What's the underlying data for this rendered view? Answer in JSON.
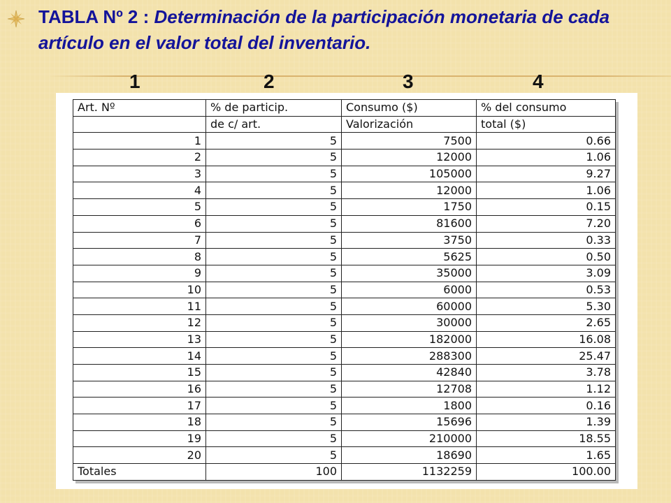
{
  "title": {
    "lead": "TABLA Nº 2 : ",
    "main": "Determinación de la participación monetaria de cada artículo en el valor total del inventario."
  },
  "column_numbers": [
    "1",
    "2",
    "3",
    "4"
  ],
  "table": {
    "header1": [
      "Art. Nº",
      "% de particip.",
      "Consumo ($)",
      "% del consumo"
    ],
    "header2": [
      "",
      "de c/ art.",
      "Valorización",
      "total ($)"
    ],
    "rows": [
      [
        "1",
        "5",
        "7500",
        "0.66"
      ],
      [
        "2",
        "5",
        "12000",
        "1.06"
      ],
      [
        "3",
        "5",
        "105000",
        "9.27"
      ],
      [
        "4",
        "5",
        "12000",
        "1.06"
      ],
      [
        "5",
        "5",
        "1750",
        "0.15"
      ],
      [
        "6",
        "5",
        "81600",
        "7.20"
      ],
      [
        "7",
        "5",
        "3750",
        "0.33"
      ],
      [
        "8",
        "5",
        "5625",
        "0.50"
      ],
      [
        "9",
        "5",
        "35000",
        "3.09"
      ],
      [
        "10",
        "5",
        "6000",
        "0.53"
      ],
      [
        "11",
        "5",
        "60000",
        "5.30"
      ],
      [
        "12",
        "5",
        "30000",
        "2.65"
      ],
      [
        "13",
        "5",
        "182000",
        "16.08"
      ],
      [
        "14",
        "5",
        "288300",
        "25.47"
      ],
      [
        "15",
        "5",
        "42840",
        "3.78"
      ],
      [
        "16",
        "5",
        "12708",
        "1.12"
      ],
      [
        "17",
        "5",
        "1800",
        "0.16"
      ],
      [
        "18",
        "5",
        "15696",
        "1.39"
      ],
      [
        "19",
        "5",
        "210000",
        "18.55"
      ],
      [
        "20",
        "5",
        "18690",
        "1.65"
      ]
    ],
    "totals": [
      "Totales",
      "100",
      "1132259",
      "100.00"
    ]
  }
}
